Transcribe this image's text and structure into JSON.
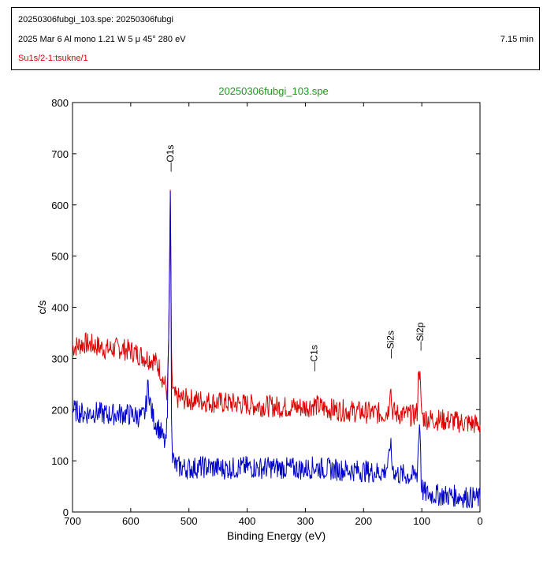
{
  "header": {
    "file_line": "20250306fubgi_103.spe: 20250306fubgi",
    "params_line": "2025 Mar 6   Al mono   1.21 W   5 μ   45°   280 eV",
    "duration": "7.15 min",
    "region_line": "Su1s/2-1:tsukne/1",
    "region_color": "#dd0000"
  },
  "chart_data": {
    "type": "line",
    "title": "20250306fubgi_103.spe",
    "title_color": "#1a9a1a",
    "xlabel": "Binding Energy (eV)",
    "ylabel": "c/s",
    "xlim": [
      700,
      0
    ],
    "ylim": [
      0,
      800
    ],
    "x_ticks": [
      700,
      600,
      500,
      400,
      300,
      200,
      100,
      0
    ],
    "y_ticks": [
      0,
      100,
      200,
      300,
      400,
      500,
      600,
      700,
      800
    ],
    "x_tick_labels": [
      "700",
      "600",
      "500",
      "400",
      "300",
      "200",
      "100",
      "0"
    ],
    "y_tick_labels": [
      "0",
      "100",
      "200",
      "300",
      "400",
      "500",
      "600",
      "700",
      "800"
    ],
    "grid": false,
    "peak_labels": [
      {
        "label": "O1s",
        "x": 532,
        "y": 665
      },
      {
        "label": "C1s",
        "x": 285,
        "y": 275
      },
      {
        "label": "Si2s",
        "x": 154,
        "y": 300
      },
      {
        "label": "Si2p",
        "x": 103,
        "y": 315
      }
    ],
    "series": [
      {
        "color": "#dd0000",
        "x": [
          700,
          680,
          660,
          640,
          620,
          600,
          580,
          570,
          560,
          550,
          545,
          540,
          537,
          535,
          533,
          532,
          531,
          530,
          528,
          525,
          520,
          500,
          480,
          460,
          440,
          420,
          400,
          380,
          360,
          340,
          320,
          300,
          285,
          270,
          250,
          230,
          200,
          180,
          165,
          157,
          154,
          151,
          145,
          130,
          115,
          108,
          105,
          103,
          101,
          98,
          90,
          70,
          50,
          30,
          10,
          0
        ],
        "y": [
          322,
          330,
          325,
          318,
          320,
          315,
          305,
          300,
          297,
          280,
          260,
          245,
          230,
          330,
          480,
          630,
          480,
          300,
          240,
          225,
          222,
          220,
          218,
          215,
          213,
          212,
          210,
          208,
          207,
          205,
          205,
          205,
          210,
          203,
          200,
          198,
          195,
          193,
          192,
          200,
          255,
          200,
          192,
          190,
          188,
          195,
          290,
          260,
          200,
          185,
          182,
          180,
          178,
          175,
          172,
          170
        ]
      },
      {
        "color": "#0000cc",
        "x": [
          700,
          680,
          660,
          640,
          620,
          600,
          580,
          575,
          570,
          565,
          560,
          550,
          545,
          540,
          537,
          535,
          533,
          532,
          531,
          530,
          528,
          525,
          520,
          500,
          480,
          460,
          440,
          420,
          400,
          380,
          360,
          340,
          320,
          300,
          285,
          270,
          250,
          230,
          200,
          180,
          165,
          157,
          154,
          151,
          145,
          130,
          115,
          108,
          106,
          104,
          103,
          102,
          101,
          98,
          90,
          70,
          50,
          30,
          10,
          0
        ],
        "y": [
          200,
          192,
          195,
          190,
          192,
          190,
          185,
          195,
          250,
          200,
          180,
          160,
          145,
          130,
          180,
          350,
          500,
          630,
          480,
          200,
          110,
          92,
          88,
          85,
          88,
          87,
          85,
          86,
          88,
          86,
          87,
          86,
          85,
          84,
          88,
          85,
          83,
          82,
          80,
          78,
          78,
          95,
          140,
          90,
          75,
          72,
          70,
          75,
          130,
          170,
          165,
          120,
          60,
          40,
          35,
          33,
          32,
          30,
          28,
          25
        ]
      }
    ]
  }
}
